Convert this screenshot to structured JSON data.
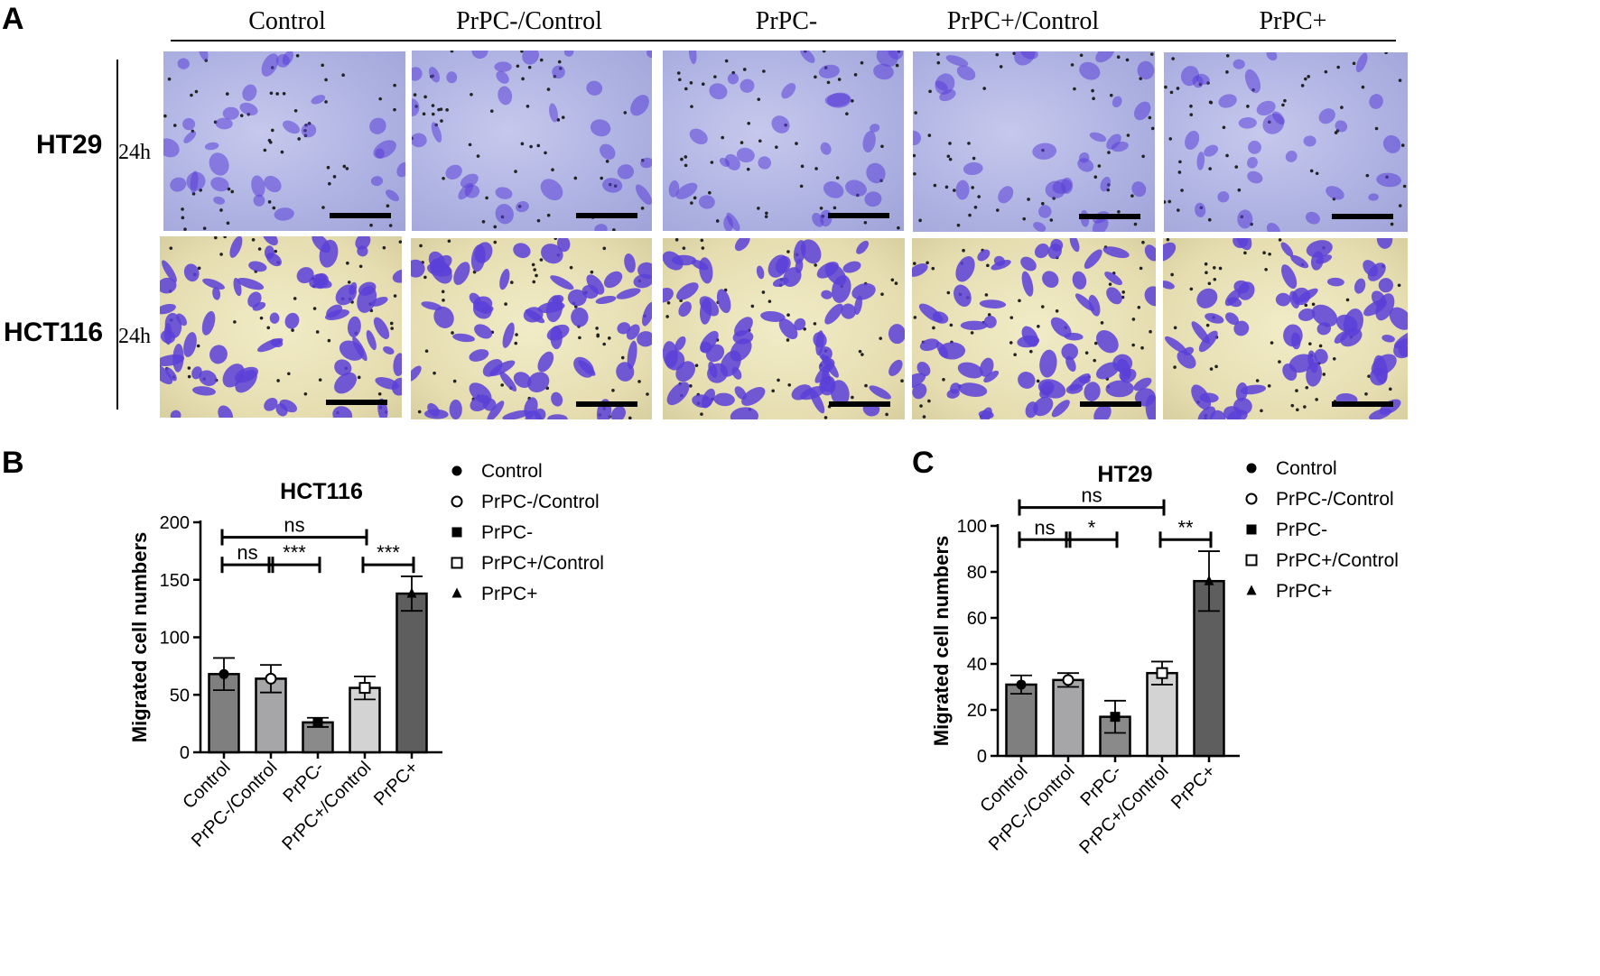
{
  "panel_a": {
    "letter": "A",
    "column_headers": [
      "Control",
      "PrPC-/Control",
      "PrPC-",
      "PrPC+/Control",
      "PrPC+"
    ],
    "rows": [
      {
        "label": "HT29",
        "time": "24h"
      },
      {
        "label": "HCT116",
        "time": "24h"
      }
    ],
    "colors": {
      "ht29_background": "#b4b7e4",
      "hct116_background": "#ece4bd",
      "stain": "#5b3fd8"
    }
  },
  "panel_b": {
    "letter": "B"
  },
  "panel_c": {
    "letter": "C"
  },
  "colors": {
    "control": "#7f7f7f",
    "prpc_minus_control": "#a6a6a8",
    "prpc_minus": "#8a8a8a",
    "prpc_plus_control": "#d3d3d3",
    "prpc_plus": "#5e5e5e"
  },
  "chart_data": [
    {
      "type": "bar",
      "title": "HCT116",
      "xlabel": "",
      "ylabel": "Migrated cell numbers",
      "categories": [
        "Control",
        "PrPC-/Control",
        "PrPC-",
        "PrPC+/Control",
        "PrPC+"
      ],
      "values": [
        68,
        64,
        26,
        56,
        138
      ],
      "errors": [
        14,
        12,
        4,
        10,
        15
      ],
      "markers": [
        "filled-circle",
        "open-circle",
        "filled-square",
        "open-square",
        "filled-triangle"
      ],
      "ylim": [
        0,
        200
      ],
      "yticks": [
        0,
        50,
        100,
        150,
        200
      ],
      "legend": {
        "placement": "top-right",
        "entries": [
          {
            "label": "Control",
            "marker": "filled-circle"
          },
          {
            "label": "PrPC-/Control",
            "marker": "open-circle"
          },
          {
            "label": "PrPC-",
            "marker": "filled-square"
          },
          {
            "label": "PrPC+/Control",
            "marker": "open-square"
          },
          {
            "label": "PrPC+",
            "marker": "filled-triangle"
          }
        ]
      },
      "significance": [
        {
          "from": 0,
          "to": 3,
          "label": "ns",
          "level": 187
        },
        {
          "from": 0,
          "to": 1,
          "label": "ns",
          "level": 163
        },
        {
          "from": 1,
          "to": 2,
          "label": "***",
          "level": 163
        },
        {
          "from": 3,
          "to": 4,
          "label": "***",
          "level": 163
        }
      ]
    },
    {
      "type": "bar",
      "title": "HT29",
      "xlabel": "",
      "ylabel": "Migrated cell numbers",
      "categories": [
        "Control",
        "PrPC-/Control",
        "PrPC-",
        "PrPC+/Control",
        "PrPC+"
      ],
      "values": [
        31,
        33,
        17,
        36,
        76
      ],
      "errors": [
        4,
        3,
        7,
        5,
        13
      ],
      "markers": [
        "filled-circle",
        "open-circle",
        "filled-square",
        "open-square",
        "filled-triangle"
      ],
      "ylim": [
        0,
        100
      ],
      "yticks": [
        0,
        20,
        40,
        60,
        80,
        100
      ],
      "legend": {
        "placement": "top-right",
        "entries": [
          {
            "label": "Control",
            "marker": "filled-circle"
          },
          {
            "label": "PrPC-/Control",
            "marker": "open-circle"
          },
          {
            "label": "PrPC-",
            "marker": "filled-square"
          },
          {
            "label": "PrPC+/Control",
            "marker": "open-square"
          },
          {
            "label": "PrPC+",
            "marker": "filled-triangle"
          }
        ]
      },
      "significance": [
        {
          "from": 0,
          "to": 3,
          "label": "ns",
          "level": 108
        },
        {
          "from": 0,
          "to": 1,
          "label": "ns",
          "level": 94
        },
        {
          "from": 1,
          "to": 2,
          "label": "*",
          "level": 94
        },
        {
          "from": 3,
          "to": 4,
          "label": "**",
          "level": 94
        }
      ]
    }
  ]
}
